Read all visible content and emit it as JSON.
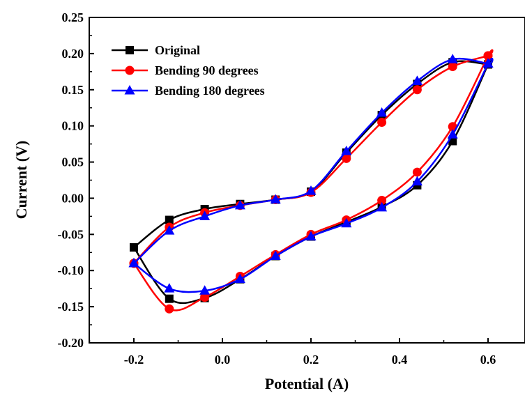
{
  "chart_data": {
    "type": "line",
    "title": "",
    "xlabel": "Potential (A)",
    "ylabel": "Current (V)",
    "xlim": [
      -0.3,
      0.7
    ],
    "ylim": [
      -0.2,
      0.25
    ],
    "x_ticks": [
      -0.2,
      0.0,
      0.2,
      0.4,
      0.6
    ],
    "x_tick_labels": [
      "-0.2",
      "0.0",
      "0.2",
      "0.4",
      "0.6"
    ],
    "y_ticks": [
      -0.2,
      -0.15,
      -0.1,
      -0.05,
      0.0,
      0.05,
      0.1,
      0.15,
      0.2,
      0.25
    ],
    "y_tick_labels": [
      "-0.20",
      "-0.15",
      "-0.10",
      "-0.05",
      "0.00",
      "0.05",
      "0.10",
      "0.15",
      "0.20",
      "0.25"
    ],
    "grid": false,
    "legend_position": "top-left",
    "series": [
      {
        "name": "Original",
        "color": "#000000",
        "marker": "square",
        "x": [
          -0.2,
          -0.12,
          -0.04,
          0.04,
          0.12,
          0.2,
          0.28,
          0.36,
          0.44,
          0.52,
          0.6,
          0.6,
          0.52,
          0.44,
          0.36,
          0.28,
          0.2,
          0.12,
          0.04,
          -0.04,
          -0.12,
          -0.2
        ],
        "values": [
          -0.068,
          -0.139,
          -0.138,
          -0.112,
          -0.08,
          -0.053,
          -0.033,
          -0.012,
          0.018,
          0.079,
          0.185,
          0.185,
          0.188,
          0.158,
          0.115,
          0.063,
          0.009,
          -0.002,
          -0.008,
          -0.015,
          -0.03,
          -0.068
        ]
      },
      {
        "name": "Bending 90 degrees",
        "color": "#ff0000",
        "marker": "circle",
        "x": [
          -0.2,
          -0.12,
          -0.04,
          0.04,
          0.12,
          0.2,
          0.28,
          0.36,
          0.44,
          0.52,
          0.6,
          0.6,
          0.52,
          0.44,
          0.36,
          0.28,
          0.2,
          0.12,
          0.04,
          -0.04,
          -0.12,
          -0.2
        ],
        "values": [
          -0.09,
          -0.153,
          -0.137,
          -0.108,
          -0.078,
          -0.05,
          -0.03,
          -0.003,
          0.036,
          0.099,
          0.197,
          0.197,
          0.182,
          0.15,
          0.105,
          0.055,
          0.008,
          -0.002,
          -0.01,
          -0.02,
          -0.04,
          -0.09
        ]
      },
      {
        "name": "Bending 180 degrees",
        "color": "#0000ff",
        "marker": "triangle",
        "x": [
          -0.2,
          -0.12,
          -0.04,
          0.04,
          0.12,
          0.2,
          0.28,
          0.36,
          0.44,
          0.52,
          0.6,
          0.6,
          0.52,
          0.44,
          0.36,
          0.28,
          0.2,
          0.12,
          0.04,
          -0.04,
          -0.12,
          -0.2
        ],
        "values": [
          -0.09,
          -0.125,
          -0.128,
          -0.112,
          -0.08,
          -0.053,
          -0.035,
          -0.013,
          0.023,
          0.088,
          0.186,
          0.186,
          0.192,
          0.162,
          0.118,
          0.065,
          0.01,
          -0.002,
          -0.01,
          -0.025,
          -0.045,
          -0.09
        ]
      }
    ]
  }
}
